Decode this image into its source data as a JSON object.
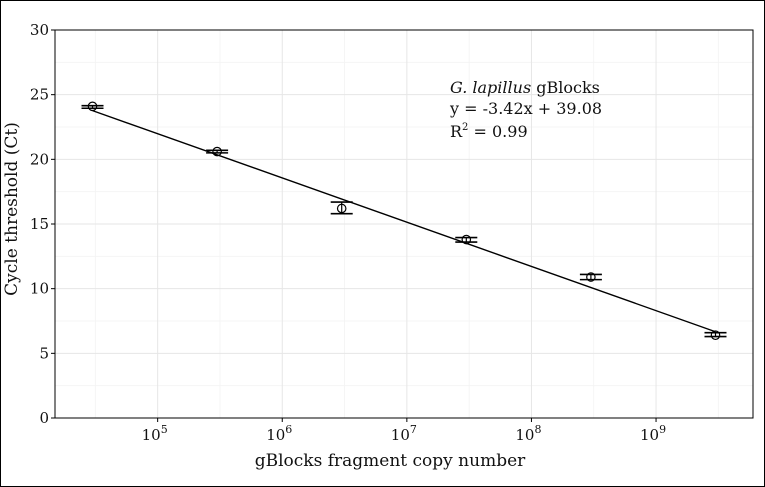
{
  "chart_data": {
    "type": "scatter",
    "xlabel": "gBlocks fragment copy number",
    "ylabel": "Cycle threshold (Ct)",
    "x_scale": "log10",
    "x_ticks": [
      {
        "value": 100000,
        "base": "10",
        "exp": "5"
      },
      {
        "value": 1000000,
        "base": "10",
        "exp": "6"
      },
      {
        "value": 10000000,
        "base": "10",
        "exp": "7"
      },
      {
        "value": 100000000,
        "base": "10",
        "exp": "8"
      },
      {
        "value": 1000000000,
        "base": "10",
        "exp": "9"
      }
    ],
    "xlim": [
      15000,
      6000000000
    ],
    "y_ticks": [
      "0",
      "5",
      "10",
      "15",
      "20",
      "25",
      "30"
    ],
    "ylim": [
      0,
      30
    ],
    "grid": true,
    "points": [
      {
        "x": 30000,
        "y": 24.1,
        "err_low": 23.95,
        "err_high": 24.15
      },
      {
        "x": 300000,
        "y": 20.6,
        "err_low": 20.5,
        "err_high": 20.7
      },
      {
        "x": 3000000,
        "y": 16.2,
        "err_low": 15.8,
        "err_high": 16.7
      },
      {
        "x": 30000000,
        "y": 13.8,
        "err_low": 13.6,
        "err_high": 13.95
      },
      {
        "x": 300000000,
        "y": 10.9,
        "err_low": 10.7,
        "err_high": 11.1
      },
      {
        "x": 3000000000,
        "y": 6.4,
        "err_low": 6.3,
        "err_high": 6.6
      }
    ],
    "fit": {
      "slope": -3.42,
      "intercept": 39.08,
      "x_from": 30000,
      "x_to": 3000000000
    },
    "annotation": {
      "species": "G. lapillus",
      "species_suffix": " gBlocks",
      "equation": "y = -3.42x + 39.08",
      "r2_prefix": "R",
      "r2_sup": "2",
      "r2_suffix": " = 0.99"
    }
  }
}
